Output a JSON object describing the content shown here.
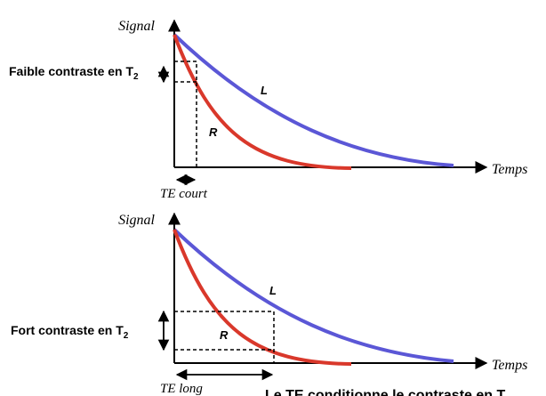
{
  "panels": [
    {
      "y_label": "Signal",
      "x_label": "Temps",
      "contrast_label": "Faible contraste en T",
      "contrast_sub": "2",
      "te_label": "TE court",
      "curve_long_label": "L",
      "curve_short_label": "R"
    },
    {
      "y_label": "Signal",
      "x_label": "Temps",
      "contrast_label": "Fort contraste en T",
      "contrast_sub": "2",
      "te_label": "TE long",
      "curve_long_label": "L",
      "curve_short_label": "R"
    }
  ],
  "caption": "Le TE conditionne le contraste en T",
  "colors": {
    "curve_long": "#5b57d6",
    "curve_short": "#d9382b",
    "axis": "#000000"
  }
}
